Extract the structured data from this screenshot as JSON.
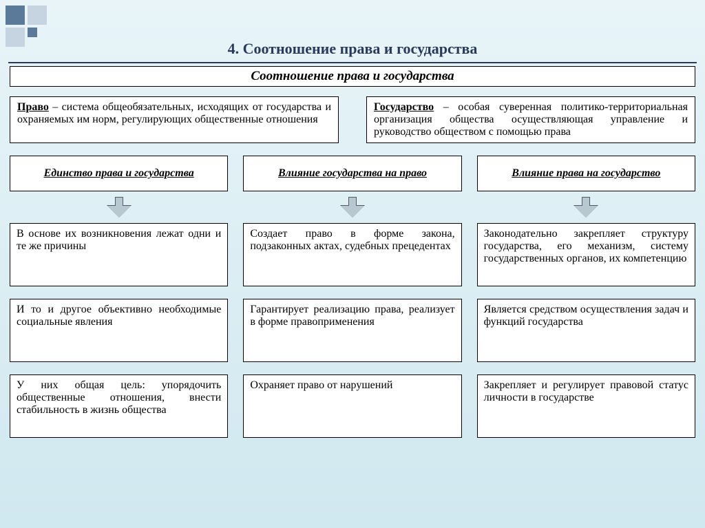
{
  "colors": {
    "background_top": "#e8f4f8",
    "background_bottom": "#d0e8f0",
    "box_border": "#000000",
    "box_bg": "#ffffff",
    "title_color": "#2a3a5a",
    "arrow_fill": "#b8c8d0",
    "arrow_border": "#556677",
    "corner_dark": "#5b7a9a",
    "corner_light": "#c5d4e0"
  },
  "typography": {
    "font_family": "Times New Roman",
    "title_size_pt": 17,
    "body_size_pt": 12
  },
  "title": "4. Соотношение права и государства",
  "subtitle": "Соотношение права и государства",
  "definitions": {
    "left": {
      "term": "Право",
      "text": " – система общеобязательных, исхо­дящих от государства и охраняемых им норм, регулирующих общественные отно­шения"
    },
    "right": {
      "term": "Государство",
      "text": " – особая суверенная политико-территориальная организация общества осуществляющая управление и руководство обществом с помощью права"
    }
  },
  "columns": [
    {
      "header": "Единство права и государства",
      "cells": [
        "В основе их возникновения лежат одни и те же причины",
        "И то и другое объективно необходи­мые социальные явления",
        "У них общая цель: упорядочить общественные отношения, внести стабильность в жизнь общества"
      ]
    },
    {
      "header": "Влияние государства на право",
      "cells": [
        "Создает право в форме закона, подзаконных актах, судебных пре­цедентах",
        "Гарантирует реализа­цию права, реализует в форме правопримен­ения",
        "Охраняет право от нарушений"
      ]
    },
    {
      "header": "Влияние права на государство",
      "cells": [
        "Законодательно закрепляет стру­ктуру государства, его механизм, систему государственных орга­нов, их компетенцию",
        "Является средством осуществле­ния задач и функций государства",
        "Закрепляет и регулирует право­вой статус личности в государ­стве"
      ]
    }
  ]
}
